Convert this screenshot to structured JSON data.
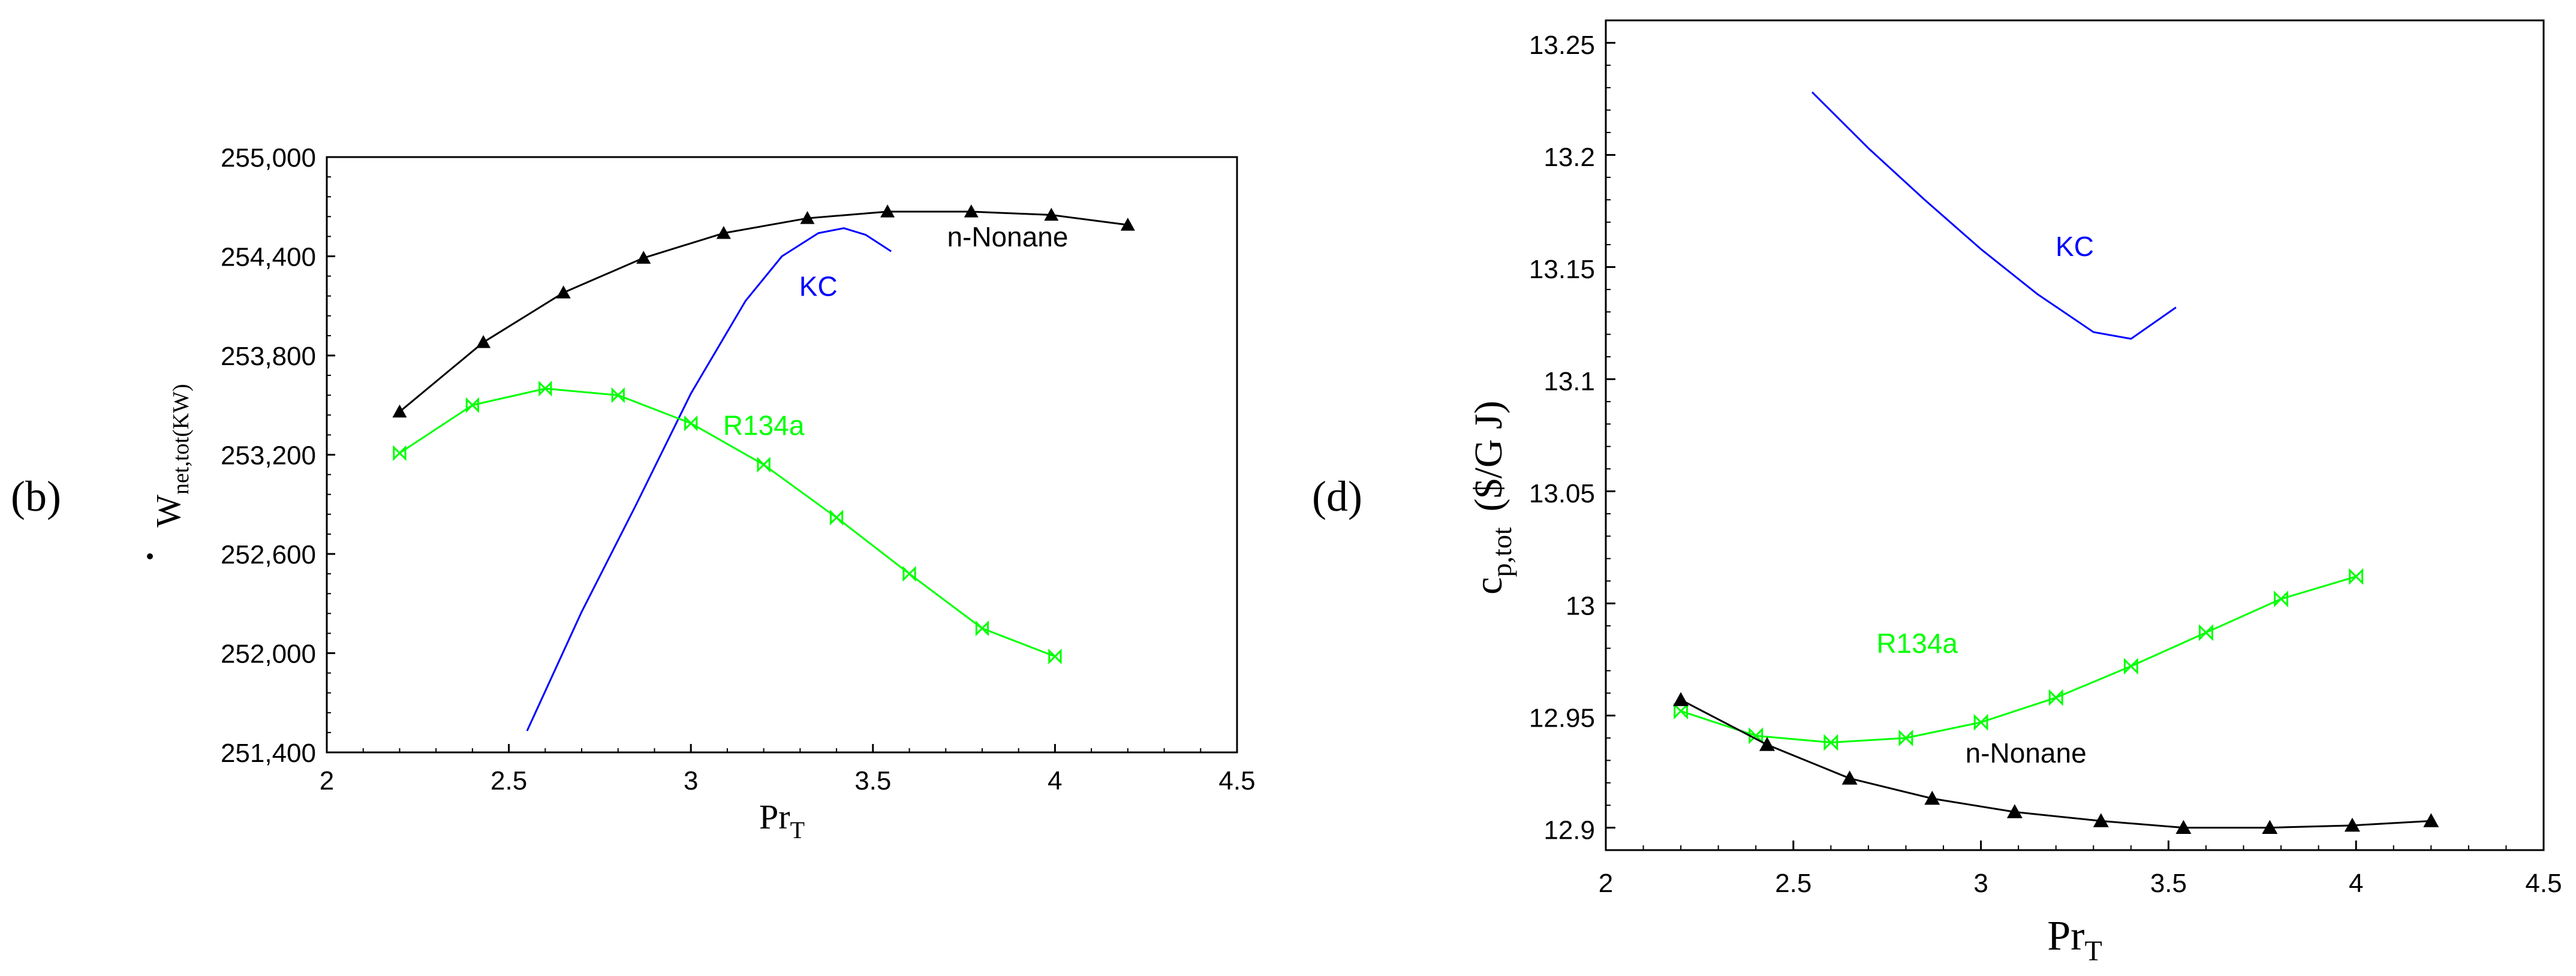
{
  "chart_data": [
    {
      "type": "line",
      "panel_label": "(b)",
      "xlabel": {
        "base": "Pr",
        "sub": "T"
      },
      "ylabel": {
        "base": "W",
        "sub": "net,tot(KW)",
        "dot": true
      },
      "xlim": [
        2,
        4.5
      ],
      "ylim": [
        251400,
        255000
      ],
      "xticks": [
        2,
        2.5,
        3,
        3.5,
        4,
        4.5
      ],
      "xtick_labels": [
        "2",
        "2.5",
        "3",
        "3.5",
        "4",
        "4.5"
      ],
      "yticks": [
        251400,
        252000,
        252600,
        253200,
        253800,
        254400,
        255000
      ],
      "ytick_labels": [
        "251,400",
        "252,000",
        "252,600",
        "253,200",
        "253,800",
        "254,400",
        "255,000"
      ],
      "series": [
        {
          "name": "n-Nonane",
          "color": "#000000",
          "marker": "triangle",
          "label_anchor": {
            "x": 3.87,
            "y": 254460
          },
          "x": [
            2.2,
            2.43,
            2.65,
            2.87,
            3.09,
            3.32,
            3.54,
            3.77,
            3.99,
            4.2
          ],
          "y": [
            253460,
            253880,
            254180,
            254390,
            254540,
            254630,
            254670,
            254670,
            254650,
            254590
          ]
        },
        {
          "name": "KC",
          "color": "#0000ff",
          "marker": "none",
          "label_anchor": {
            "x": 3.35,
            "y": 254160
          },
          "x": [
            2.55,
            2.7,
            2.85,
            3.0,
            3.15,
            3.25,
            3.35,
            3.42,
            3.48,
            3.55
          ],
          "y": [
            251530,
            252250,
            252900,
            253570,
            254130,
            254400,
            254540,
            254570,
            254530,
            254430
          ]
        },
        {
          "name": "R134a",
          "color": "#00ff00",
          "marker": "bowtie",
          "label_anchor": {
            "x": 3.2,
            "y": 253320
          },
          "x": [
            2.2,
            2.4,
            2.6,
            2.8,
            3.0,
            3.2,
            3.4,
            3.6,
            3.8,
            4.0
          ],
          "y": [
            253210,
            253500,
            253600,
            253560,
            253390,
            253140,
            252820,
            252480,
            252150,
            251980
          ]
        }
      ]
    },
    {
      "type": "line",
      "panel_label": "(d)",
      "xlabel": {
        "base": "Pr",
        "sub": "T"
      },
      "ylabel": {
        "base": "c",
        "sub": "p,tot",
        "unit": "($/G J)"
      },
      "xlim": [
        2,
        4.5
      ],
      "ylim": [
        12.89,
        13.26
      ],
      "xticks": [
        2,
        2.5,
        3,
        3.5,
        4,
        4.5
      ],
      "xtick_labels": [
        "2",
        "2.5",
        "3",
        "3.5",
        "4",
        "4.5"
      ],
      "yticks": [
        12.9,
        12.95,
        13.0,
        13.05,
        13.1,
        13.15,
        13.2,
        13.25
      ],
      "ytick_labels": [
        "12.9",
        "12.95",
        "13",
        "13.05",
        "13.1",
        "13.15",
        "13.2",
        "13.25"
      ],
      "series": [
        {
          "name": "KC",
          "color": "#0000ff",
          "marker": "none",
          "label_anchor": {
            "x": 3.25,
            "y": 13.155
          },
          "x": [
            2.55,
            2.7,
            2.85,
            3.0,
            3.15,
            3.3,
            3.4,
            3.52
          ],
          "y": [
            13.228,
            13.203,
            13.18,
            13.158,
            13.138,
            13.121,
            13.118,
            13.132
          ]
        },
        {
          "name": "R134a",
          "color": "#00ff00",
          "marker": "bowtie",
          "label_anchor": {
            "x": 2.83,
            "y": 12.978
          },
          "x": [
            2.2,
            2.4,
            2.6,
            2.8,
            3.0,
            3.2,
            3.4,
            3.6,
            3.8,
            4.0
          ],
          "y": [
            12.952,
            12.941,
            12.938,
            12.94,
            12.947,
            12.958,
            12.972,
            12.987,
            13.002,
            13.012
          ]
        },
        {
          "name": "n-Nonane",
          "color": "#000000",
          "marker": "triangle",
          "label_anchor": {
            "x": 3.12,
            "y": 12.929
          },
          "x": [
            2.2,
            2.43,
            2.65,
            2.87,
            3.09,
            3.32,
            3.54,
            3.77,
            3.99,
            4.2
          ],
          "y": [
            12.957,
            12.937,
            12.922,
            12.913,
            12.907,
            12.903,
            12.9,
            12.9,
            12.901,
            12.903
          ]
        }
      ]
    }
  ]
}
